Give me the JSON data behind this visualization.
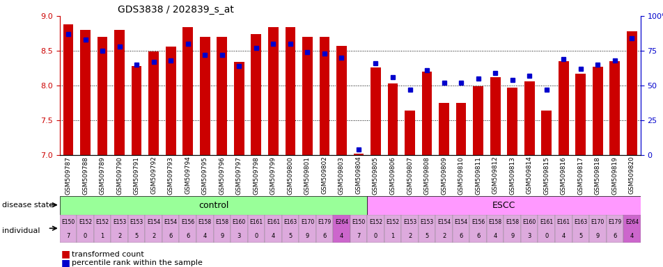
{
  "title": "GDS3838 / 202839_s_at",
  "samples": [
    "GSM509787",
    "GSM509788",
    "GSM509789",
    "GSM509790",
    "GSM509791",
    "GSM509792",
    "GSM509793",
    "GSM509794",
    "GSM509795",
    "GSM509796",
    "GSM509797",
    "GSM509798",
    "GSM509799",
    "GSM509800",
    "GSM509801",
    "GSM509802",
    "GSM509803",
    "GSM509804",
    "GSM509805",
    "GSM509806",
    "GSM509807",
    "GSM509808",
    "GSM509809",
    "GSM509810",
    "GSM509811",
    "GSM509812",
    "GSM509813",
    "GSM509814",
    "GSM509815",
    "GSM509816",
    "GSM509817",
    "GSM509818",
    "GSM509819",
    "GSM509820"
  ],
  "bar_values": [
    8.88,
    8.8,
    8.7,
    8.8,
    8.28,
    8.49,
    8.56,
    8.84,
    8.7,
    8.7,
    8.34,
    8.74,
    8.84,
    8.84,
    8.7,
    8.7,
    8.57,
    7.02,
    8.26,
    8.03,
    7.64,
    8.2,
    7.75,
    7.75,
    7.99,
    8.12,
    7.97,
    8.06,
    7.64,
    8.35,
    8.17,
    8.27,
    8.35,
    8.78
  ],
  "percentile_values": [
    87,
    83,
    75,
    78,
    65,
    67,
    68,
    80,
    72,
    72,
    64,
    77,
    80,
    80,
    74,
    73,
    70,
    4,
    66,
    56,
    47,
    61,
    52,
    52,
    55,
    59,
    54,
    57,
    47,
    69,
    62,
    65,
    68,
    84
  ],
  "disease_state": [
    "control",
    "control",
    "control",
    "control",
    "control",
    "control",
    "control",
    "control",
    "control",
    "control",
    "control",
    "control",
    "control",
    "control",
    "control",
    "control",
    "control",
    "control",
    "ESCC",
    "ESCC",
    "ESCC",
    "ESCC",
    "ESCC",
    "ESCC",
    "ESCC",
    "ESCC",
    "ESCC",
    "ESCC",
    "ESCC",
    "ESCC",
    "ESCC",
    "ESCC",
    "ESCC",
    "ESCC"
  ],
  "individual_top": [
    "E150",
    "E152",
    "E152",
    "E153",
    "E153",
    "E154",
    "E154",
    "E156",
    "E158",
    "E158",
    "E160",
    "E161",
    "E161",
    "E163",
    "E170",
    "E179",
    "E264",
    "E150",
    "E152",
    "E152",
    "E153",
    "E153",
    "E154",
    "E154",
    "E156",
    "E158",
    "E158",
    "E160",
    "E161",
    "E161",
    "E163",
    "E170",
    "E179",
    "E264"
  ],
  "individual_bottom": [
    "7",
    "0",
    "1",
    "2",
    "5",
    "2",
    "6",
    "6",
    "4",
    "9",
    "3",
    "0",
    "4",
    "5",
    "9",
    "6",
    "4",
    "7",
    "0",
    "1",
    "2",
    "5",
    "2",
    "6",
    "6",
    "4",
    "9",
    "3",
    "0",
    "4",
    "5",
    "9",
    "6",
    "4"
  ],
  "ylim": [
    7,
    9
  ],
  "yticks": [
    7,
    7.5,
    8,
    8.5,
    9
  ],
  "bar_color": "#cc0000",
  "dot_color": "#0000cc",
  "control_color": "#99ff99",
  "escc_color": "#ff99ff",
  "purple_color": "#cc66cc",
  "pink_color": "#ddaadd",
  "control_label": "control",
  "escc_label": "ESCC",
  "y2ticks": [
    0,
    25,
    50,
    75,
    100
  ],
  "y2ticklabels": [
    "0",
    "25",
    "50",
    "75",
    "100%"
  ],
  "n_control": 18,
  "n_total": 34,
  "e264_indices": [
    16,
    33
  ]
}
